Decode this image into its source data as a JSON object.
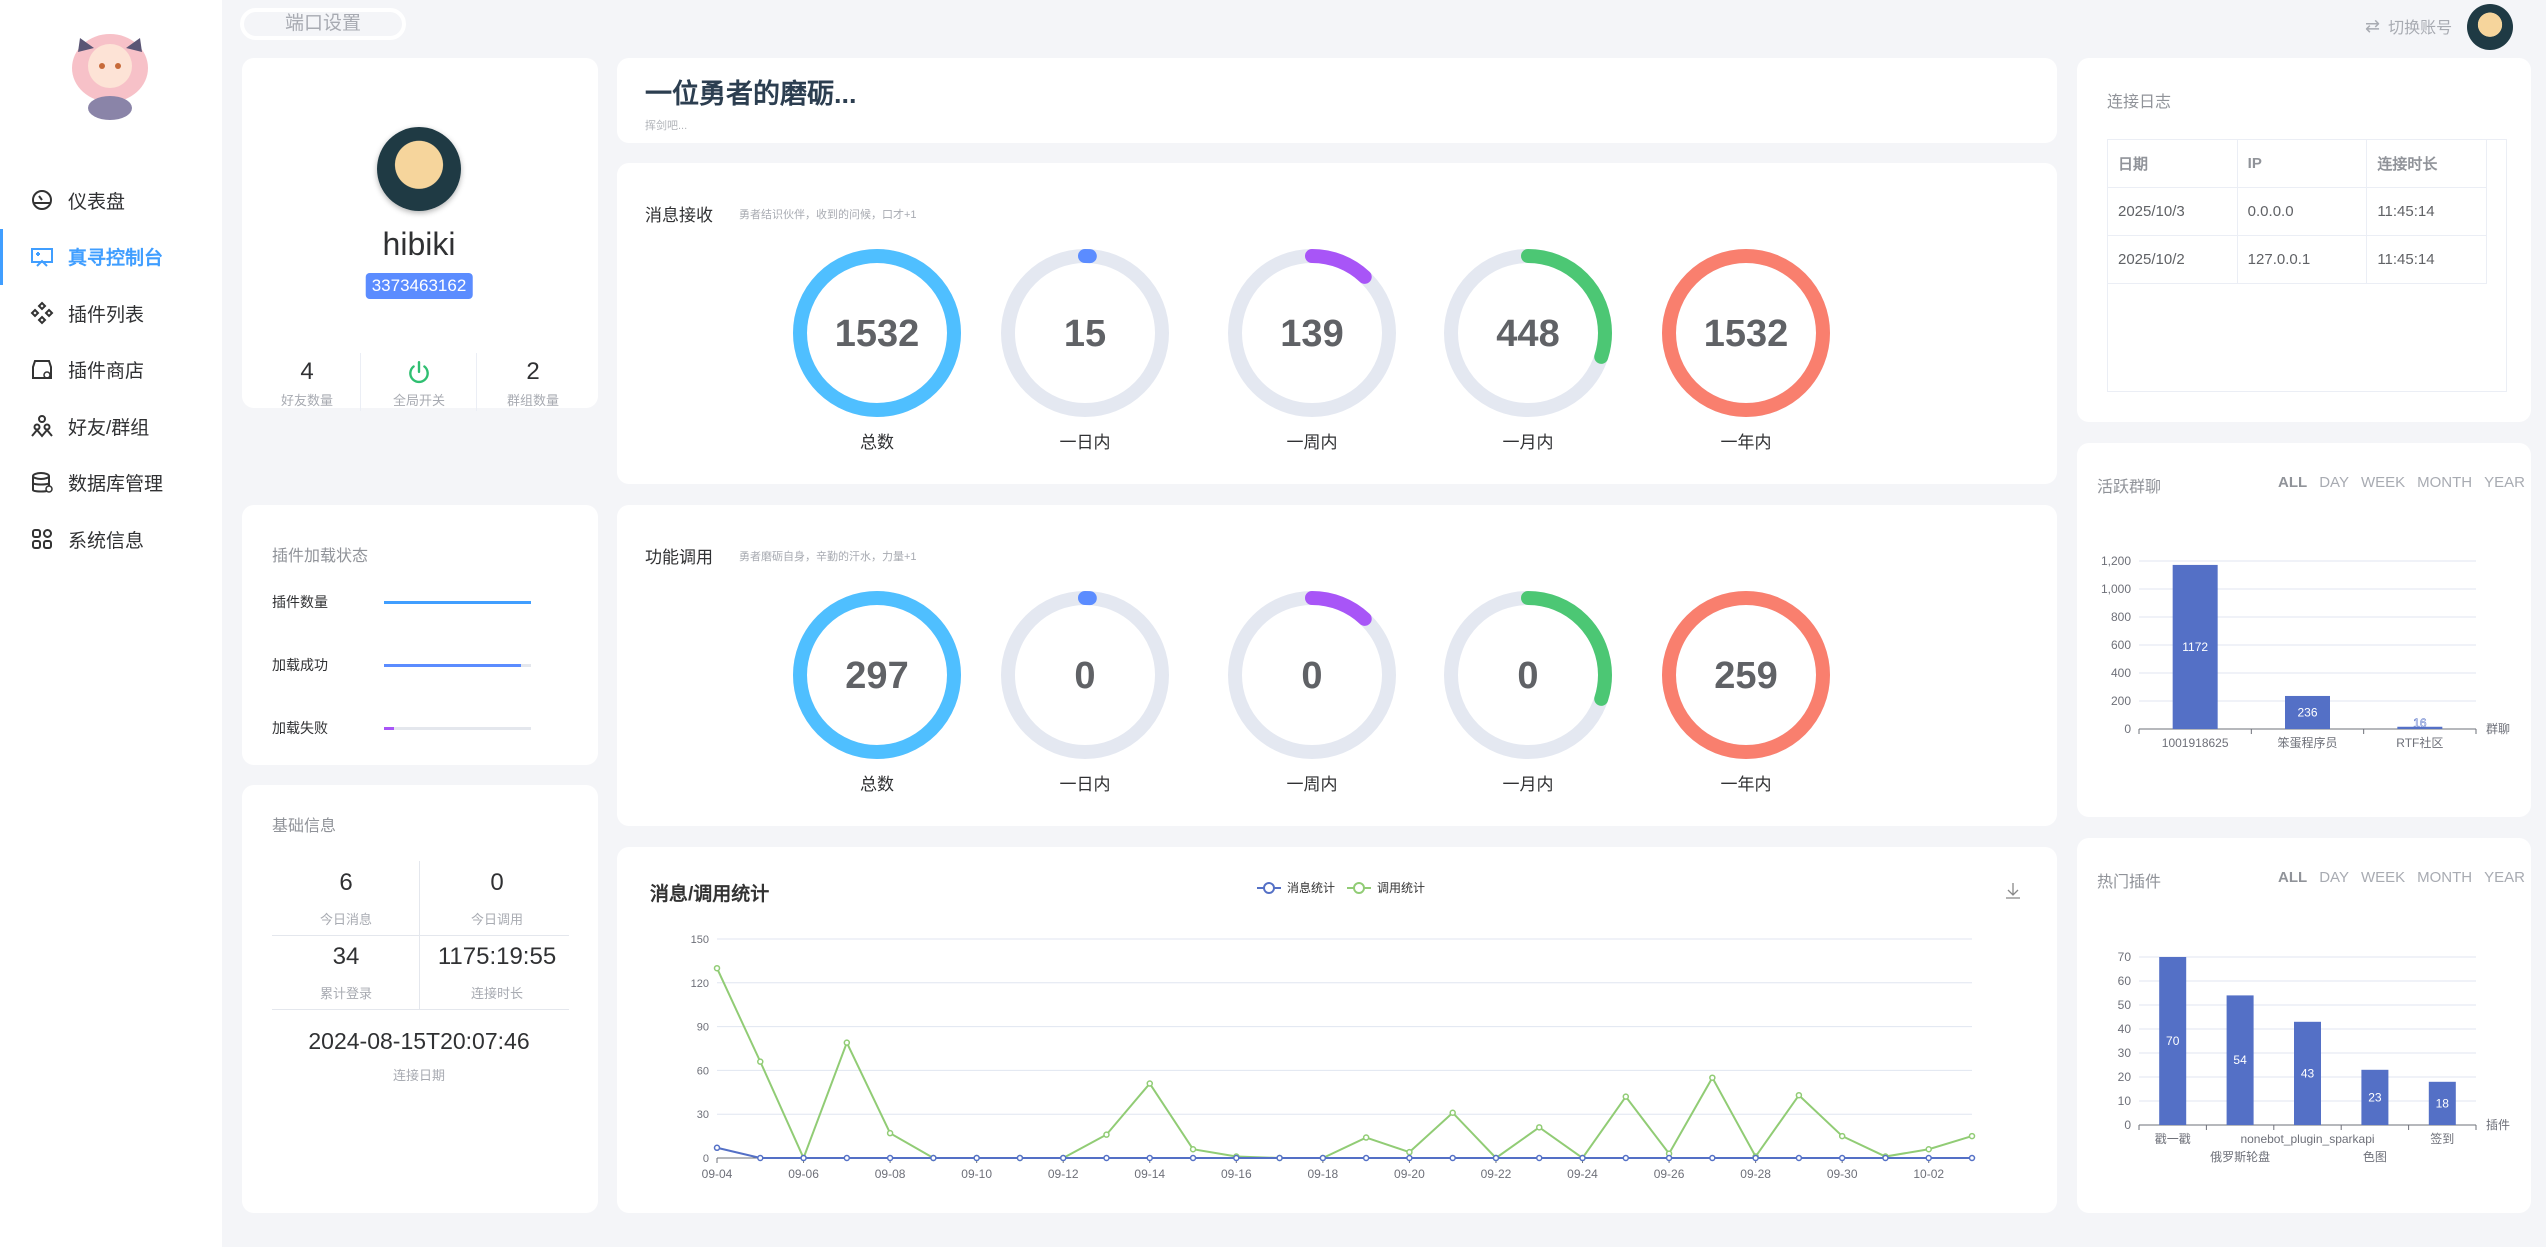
{
  "topbar": {
    "port_button": "端口设置",
    "switch_account": "切换账号"
  },
  "sidebar": {
    "items": [
      {
        "label": "仪表盘",
        "icon": "dashboard-icon",
        "active": false
      },
      {
        "label": "真寻控制台",
        "icon": "console-icon",
        "active": true
      },
      {
        "label": "插件列表",
        "icon": "plugin-list-icon",
        "active": false
      },
      {
        "label": "插件商店",
        "icon": "store-icon",
        "active": false
      },
      {
        "label": "好友/群组",
        "icon": "people-icon",
        "active": false
      },
      {
        "label": "数据库管理",
        "icon": "database-icon",
        "active": false
      },
      {
        "label": "系统信息",
        "icon": "grid-icon",
        "active": false
      }
    ]
  },
  "profile": {
    "name": "hibiki",
    "id": "3373463162",
    "friends": "4",
    "friends_label": "好友数量",
    "switch_label": "全局开关",
    "groups": "2",
    "groups_label": "群组数量"
  },
  "plugin_status": {
    "title": "插件加载状态",
    "rows": [
      {
        "label": "插件数量",
        "percent": 100,
        "color": "#409eff"
      },
      {
        "label": "加载成功",
        "percent": 93,
        "color": "#5b8cff"
      },
      {
        "label": "加载失败",
        "percent": 7,
        "color": "#a855f7"
      }
    ]
  },
  "basic_info": {
    "title": "基础信息",
    "today_msg": "6",
    "today_msg_label": "今日消息",
    "today_call": "0",
    "today_call_label": "今日调用",
    "logins": "34",
    "logins_label": "累计登录",
    "duration": "1175:19:55",
    "duration_label": "连接时长",
    "date": "2024-08-15T20:07:46",
    "date_label": "连接日期"
  },
  "hero": {
    "title": "一位勇者的磨砺...",
    "subtitle": "挥剑吧..."
  },
  "msg_recv": {
    "title": "消息接收",
    "subtitle": "勇者结识伙伴，收到的问候，口才+1",
    "rings": [
      {
        "value": "1532",
        "label": "总数",
        "fraction": 1,
        "color": "#4fbfff"
      },
      {
        "value": "15",
        "label": "一日内",
        "fraction": 0.01,
        "color": "#5b8cff"
      },
      {
        "value": "139",
        "label": "一周内",
        "fraction": 0.12,
        "color": "#a855f7"
      },
      {
        "value": "448",
        "label": "一月内",
        "fraction": 0.3,
        "color": "#4cc774"
      },
      {
        "value": "1532",
        "label": "一年内",
        "fraction": 1,
        "color": "#f97f6e"
      }
    ]
  },
  "func_call": {
    "title": "功能调用",
    "subtitle": "勇者磨砺自身，辛勤的汗水，力量+1",
    "rings": [
      {
        "value": "297",
        "label": "总数",
        "fraction": 1,
        "color": "#4fbfff"
      },
      {
        "value": "0",
        "label": "一日内",
        "fraction": 0.01,
        "color": "#5b8cff"
      },
      {
        "value": "0",
        "label": "一周内",
        "fraction": 0.12,
        "color": "#a855f7"
      },
      {
        "value": "0",
        "label": "一月内",
        "fraction": 0.3,
        "color": "#4cc774"
      },
      {
        "value": "259",
        "label": "一年内",
        "fraction": 1,
        "color": "#f97f6e"
      }
    ]
  },
  "conn_log": {
    "title": "连接日志",
    "headers": [
      "日期",
      "IP",
      "连接时长"
    ],
    "rows": [
      [
        "2025/10/3",
        "0.0.0.0",
        "11:45:14"
      ],
      [
        "2025/10/2",
        "127.0.0.1",
        "11:45:14"
      ]
    ]
  },
  "period_tabs": [
    "ALL",
    "DAY",
    "WEEK",
    "MONTH",
    "YEAR"
  ],
  "chart_data": [
    {
      "type": "line",
      "title": "消息/调用统计",
      "x": [
        "09-04",
        "09-05",
        "09-06",
        "09-07",
        "09-08",
        "09-09",
        "09-10",
        "09-11",
        "09-12",
        "09-13",
        "09-14",
        "09-15",
        "09-16",
        "09-17",
        "09-18",
        "09-19",
        "09-20",
        "09-21",
        "09-22",
        "09-23",
        "09-24",
        "09-25",
        "09-26",
        "09-27",
        "09-28",
        "09-29",
        "09-30",
        "10-01",
        "10-02",
        "10-03"
      ],
      "xticks": [
        "09-04",
        "09-06",
        "09-08",
        "09-10",
        "09-12",
        "09-14",
        "09-16",
        "09-18",
        "09-20",
        "09-22",
        "09-24",
        "09-26",
        "09-28",
        "09-30",
        "10-02"
      ],
      "ylim": [
        0,
        150
      ],
      "yticks": [
        0,
        30,
        60,
        90,
        120,
        150
      ],
      "grid": true,
      "legend": "top-center",
      "series": [
        {
          "name": "消息统计",
          "color": "#5470c6",
          "values": [
            7,
            0,
            0,
            0,
            0,
            0,
            0,
            0,
            0,
            0,
            0,
            0,
            0,
            0,
            0,
            0,
            0,
            0,
            0,
            0,
            0,
            0,
            0,
            0,
            0,
            0,
            0,
            0,
            0,
            0
          ]
        },
        {
          "name": "调用统计",
          "color": "#91cc75",
          "values": [
            130,
            66,
            0,
            79,
            17,
            0,
            0,
            0,
            0,
            16,
            51,
            6,
            1,
            0,
            0,
            14,
            4,
            31,
            0,
            21,
            0,
            42,
            3,
            55,
            1,
            43,
            15,
            1,
            6,
            15
          ]
        }
      ]
    },
    {
      "type": "bar",
      "title": "活跃群聊",
      "xlabel": "群聊",
      "categories": [
        "1001918625",
        "笨蛋程序员",
        "RTF社区"
      ],
      "values": [
        1172,
        236,
        16
      ],
      "ylim": [
        0,
        1200
      ],
      "yticks": [
        "0",
        "200",
        "400",
        "600",
        "800",
        "1,000",
        "1,200"
      ],
      "color": "#5470c6"
    },
    {
      "type": "bar",
      "title": "热门插件",
      "xlabel": "插件",
      "categories": [
        "戳一戳",
        "俄罗斯轮盘",
        "nonebot_plugin_sparkapi",
        "色图",
        "签到"
      ],
      "values": [
        70,
        54,
        43,
        23,
        18
      ],
      "ylim": [
        0,
        70
      ],
      "yticks": [
        "0",
        "10",
        "20",
        "30",
        "40",
        "50",
        "60",
        "70"
      ],
      "color": "#5470c6"
    }
  ]
}
